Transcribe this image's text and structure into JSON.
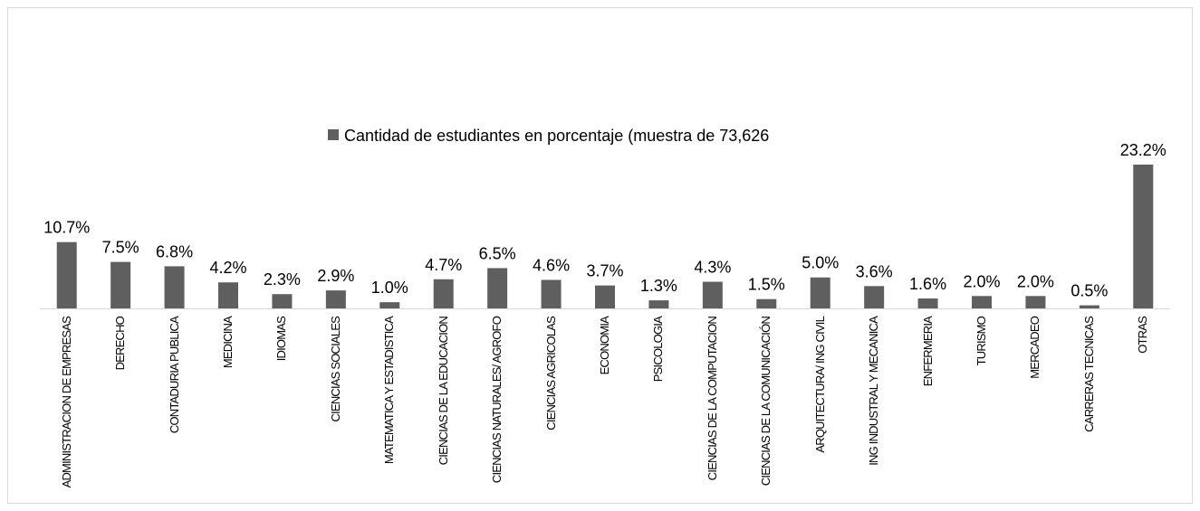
{
  "chart_data": {
    "type": "bar",
    "categories": [
      "ADMINISTRACION DE EMPRESAS",
      "DERECHO",
      "CONTADURIA PUBLICA",
      "MEDICINA",
      "IDIOMAS",
      "CIENCIAS SOCIALES",
      "MATEMATICA Y ESTADISTICA",
      "CIENCIAS DE LA EDUCACION",
      "CIENCIAS NATURALES/ AGROFO",
      "CIENCIAS AGRICOLAS",
      "ECONOMIA",
      "PSICOLOGIA",
      "CIENCIAS DE LA COMPUTACION",
      "CIENCIAS DE LA COMUNICACIÓN",
      "ARQUITECTURA/ ING CIVIL",
      "ING INDUSTRAL Y MECANICA",
      "ENFERMERIA",
      "TURISMO",
      "MERCADEO",
      "CARRERAS TECNICAS",
      "OTRAS"
    ],
    "series": [
      {
        "name": "Cantidad de estudiantes en porcentaje (muestra de 73,626",
        "color": "#5f5f5f",
        "values": [
          10.7,
          7.5,
          6.8,
          4.2,
          2.3,
          2.9,
          1.0,
          4.7,
          6.5,
          4.6,
          3.7,
          1.3,
          4.3,
          1.5,
          5.0,
          3.6,
          1.6,
          2.0,
          2.0,
          0.5,
          23.2
        ],
        "value_labels": [
          "10.7%",
          "7.5%",
          "6.8%",
          "4.2%",
          "2.3%",
          "2.9%",
          "1.0%",
          "4.7%",
          "6.5%",
          "4.6%",
          "3.7%",
          "1.3%",
          "4.3%",
          "1.5%",
          "5.0%",
          "3.6%",
          "1.6%",
          "2.0%",
          "2.0%",
          "0.5%",
          "23.2%"
        ]
      }
    ],
    "legend": "top"
  }
}
